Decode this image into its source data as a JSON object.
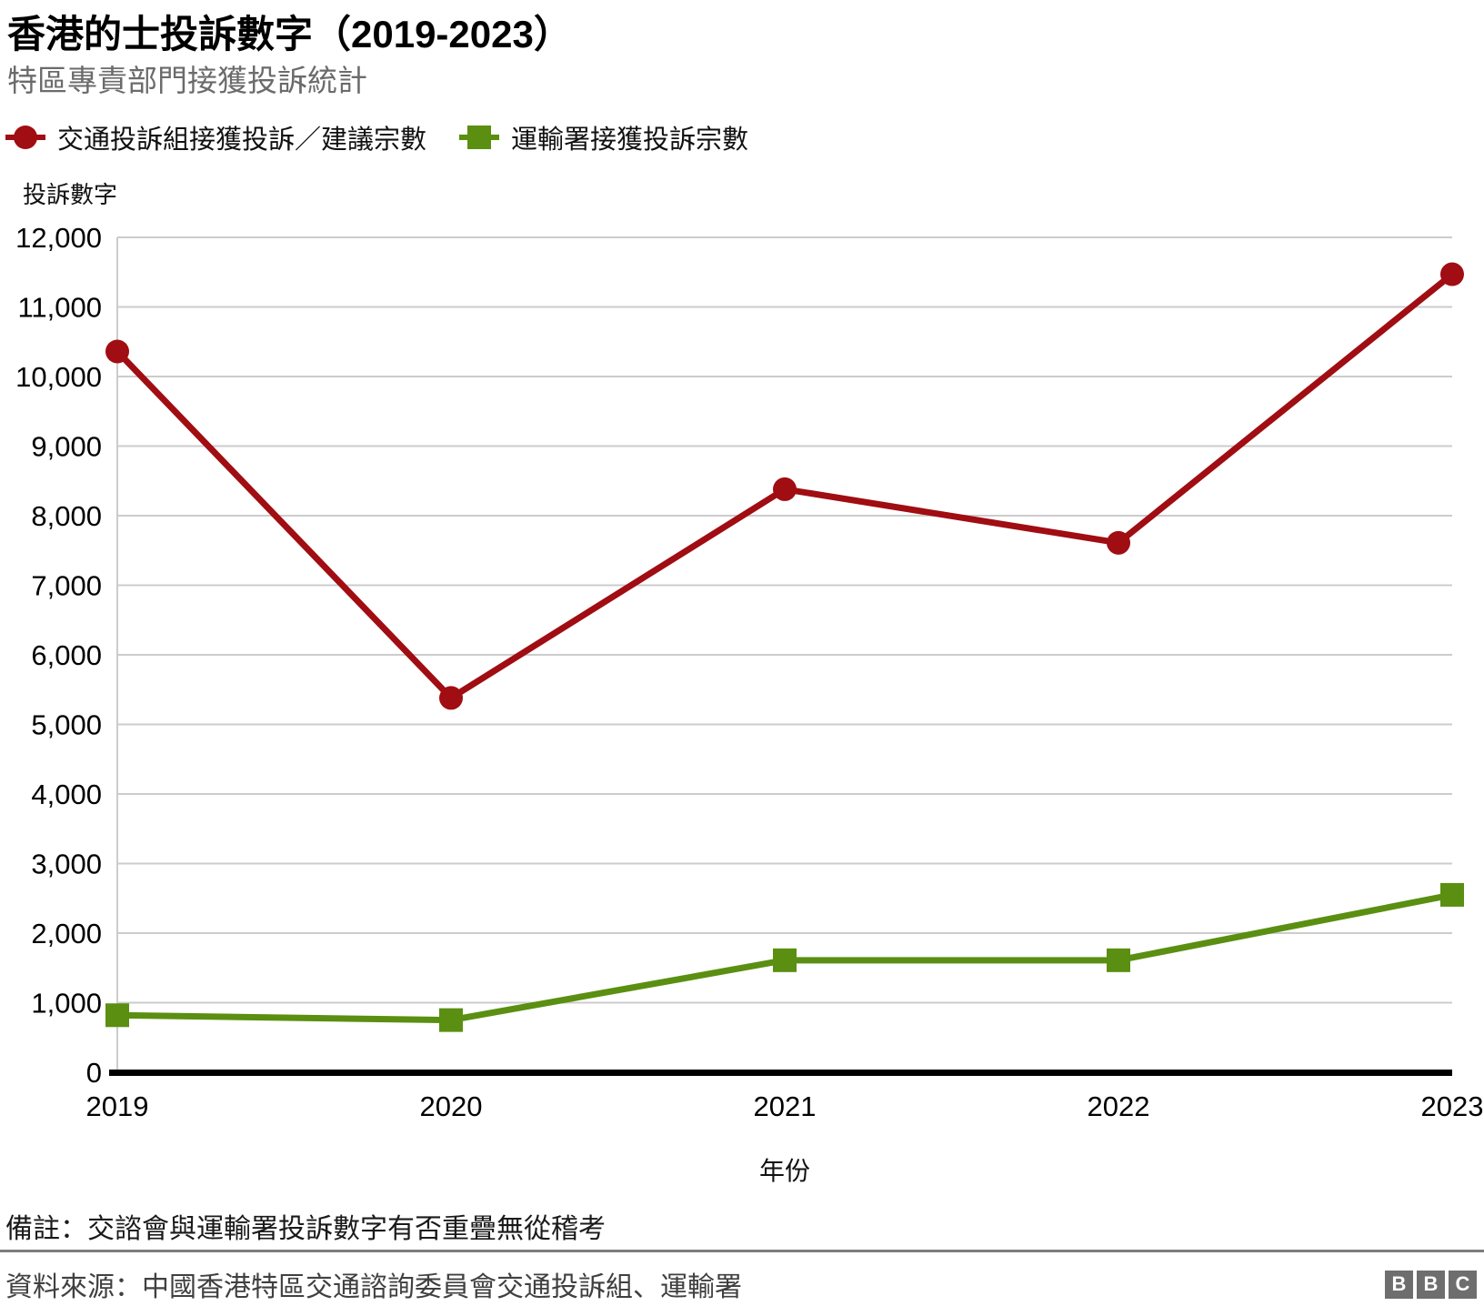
{
  "header": {
    "title": "香港的士投訴數字（2019-2023）",
    "subtitle": "特區專責部門接獲投訴統計"
  },
  "legend": [
    {
      "label": "交通投訴組接獲投訴／建議宗數",
      "color": "#a00d12",
      "marker": "circle"
    },
    {
      "label": "運輸署接獲投訴宗數",
      "color": "#5a8f11",
      "marker": "square"
    }
  ],
  "chart_data": {
    "type": "line",
    "title": "香港的士投訴數字（2019-2023）",
    "subtitle": "特區專責部門接獲投訴統計",
    "x": [
      "2019",
      "2020",
      "2021",
      "2022",
      "2023"
    ],
    "series": [
      {
        "name": "交通投訴組接獲投訴／建議宗數",
        "color": "#a00d12",
        "marker": "circle",
        "values": [
          10360,
          5380,
          8380,
          7610,
          11470
        ]
      },
      {
        "name": "運輸署接獲投訴宗數",
        "color": "#5a8f11",
        "marker": "square",
        "values": [
          820,
          750,
          1610,
          1610,
          2550
        ]
      }
    ],
    "xlabel": "年份",
    "ylabel": "投訴數字",
    "ylim": [
      0,
      12000
    ],
    "ytick_step": 1000,
    "grid": true,
    "gridline_color": "#cccccc",
    "axis_color": "#000000",
    "legend_position": "top"
  },
  "footer": {
    "note": "備註：交諮會與運輸署投訴數字有否重疊無從稽考",
    "source": "資料來源：中國香港特區交通諮詢委員會交通投訴組、運輸署",
    "logo": [
      "B",
      "B",
      "C"
    ]
  }
}
